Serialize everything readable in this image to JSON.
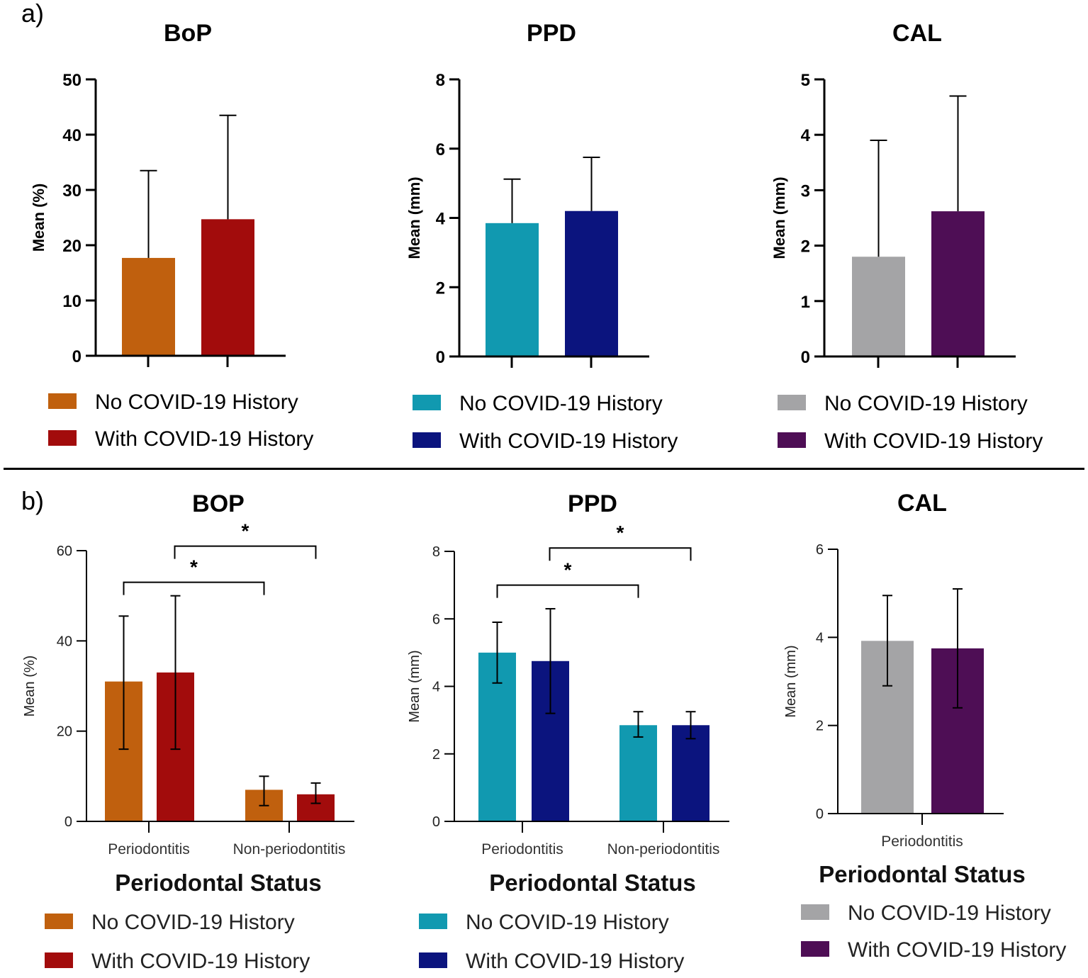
{
  "panels": {
    "a": "a)",
    "b": "b)"
  },
  "chart_data": [
    {
      "type": "bar",
      "panel": "a",
      "title": "BoP",
      "ylabel": "Mean (%)",
      "ylim": [
        0,
        50
      ],
      "yticks": [
        0,
        10,
        20,
        30,
        40,
        50
      ],
      "series": [
        {
          "name": "No COVID-19 History",
          "color": "#c0600e",
          "values": [
            17.7
          ],
          "err_upper": [
            33.5
          ]
        },
        {
          "name": "With COVID-19 History",
          "color": "#a20c0c",
          "values": [
            24.7
          ],
          "err_upper": [
            43.5
          ]
        }
      ]
    },
    {
      "type": "bar",
      "panel": "a",
      "title": "PPD",
      "ylabel": "Mean (mm)",
      "ylim": [
        0,
        8
      ],
      "yticks": [
        0,
        2,
        4,
        6,
        8
      ],
      "series": [
        {
          "name": "No COVID-19 History",
          "color": "#1199b0",
          "values": [
            3.85
          ],
          "err_upper": [
            5.12
          ]
        },
        {
          "name": "With COVID-19 History",
          "color": "#0b147e",
          "values": [
            4.2
          ],
          "err_upper": [
            5.75
          ]
        }
      ]
    },
    {
      "type": "bar",
      "panel": "a",
      "title": "CAL",
      "ylabel": "Mean (mm)",
      "ylim": [
        0,
        5
      ],
      "yticks": [
        0,
        1,
        2,
        3,
        4,
        5
      ],
      "series": [
        {
          "name": "No COVID-19 History",
          "color": "#a4a4a6",
          "values": [
            1.8
          ],
          "err_upper": [
            3.9
          ]
        },
        {
          "name": "With COVID-19 History",
          "color": "#4e0e55",
          "values": [
            2.62
          ],
          "err_upper": [
            4.7
          ]
        }
      ]
    },
    {
      "type": "bar",
      "panel": "b",
      "title": "BOP",
      "ylabel": "Mean (%)",
      "xlabel": "Periodontal Status",
      "ylim": [
        0,
        60
      ],
      "yticks": [
        0,
        20,
        40,
        60
      ],
      "categories": [
        "Periodontitis",
        "Non-periodontitis"
      ],
      "series": [
        {
          "name": "No COVID-19  History",
          "color": "#c0600e",
          "values": [
            31,
            7
          ],
          "err_low": [
            16,
            3.5
          ],
          "err_high": [
            45.5,
            10
          ]
        },
        {
          "name": "With COVID-19 History",
          "color": "#a20c0c",
          "values": [
            33,
            6
          ],
          "err_low": [
            16,
            4
          ],
          "err_high": [
            50,
            8.5
          ]
        }
      ],
      "significance": [
        {
          "label": "*",
          "from": "Periodontitis / No COVID-19  History",
          "to": "Non-periodontitis / No COVID-19  History",
          "level": 53
        },
        {
          "label": "*",
          "from": "Periodontitis / With COVID-19 History",
          "to": "Non-periodontitis / With COVID-19 History",
          "level": 61
        }
      ]
    },
    {
      "type": "bar",
      "panel": "b",
      "title": "PPD",
      "ylabel": "Mean (mm)",
      "xlabel": "Periodontal Status",
      "ylim": [
        0,
        8
      ],
      "yticks": [
        0,
        2,
        4,
        6,
        8
      ],
      "categories": [
        "Periodontitis",
        "Non-periodontitis"
      ],
      "series": [
        {
          "name": "No COVID-19  History",
          "color": "#1199b0",
          "values": [
            5.0,
            2.85
          ],
          "err_low": [
            4.1,
            2.5
          ],
          "err_high": [
            5.9,
            3.25
          ]
        },
        {
          "name": "With COVID-19 History",
          "color": "#0b147e",
          "values": [
            4.75,
            2.85
          ],
          "err_low": [
            3.2,
            2.45
          ],
          "err_high": [
            6.3,
            3.25
          ]
        }
      ],
      "significance": [
        {
          "label": "*",
          "from": "Periodontitis / No COVID-19  History",
          "to": "Non-periodontitis / No COVID-19  History",
          "level": 7.0
        },
        {
          "label": "*",
          "from": "Periodontitis / With COVID-19 History",
          "to": "Non-periodontitis / With COVID-19 History",
          "level": 8.1
        }
      ]
    },
    {
      "type": "bar",
      "panel": "b",
      "title": "CAL",
      "ylabel": "Mean (mm)",
      "xlabel": "Periodontal Status",
      "ylim": [
        0,
        6
      ],
      "yticks": [
        0,
        2,
        4,
        6
      ],
      "categories": [
        "Periodontitis"
      ],
      "series": [
        {
          "name": "No COVID-19  History",
          "color": "#a4a4a6",
          "values": [
            3.92
          ],
          "err_low": [
            2.9
          ],
          "err_high": [
            4.95
          ]
        },
        {
          "name": "With COVID-19 History",
          "color": "#4e0e55",
          "values": [
            3.75
          ],
          "err_low": [
            2.4
          ],
          "err_high": [
            5.1
          ]
        }
      ]
    }
  ]
}
